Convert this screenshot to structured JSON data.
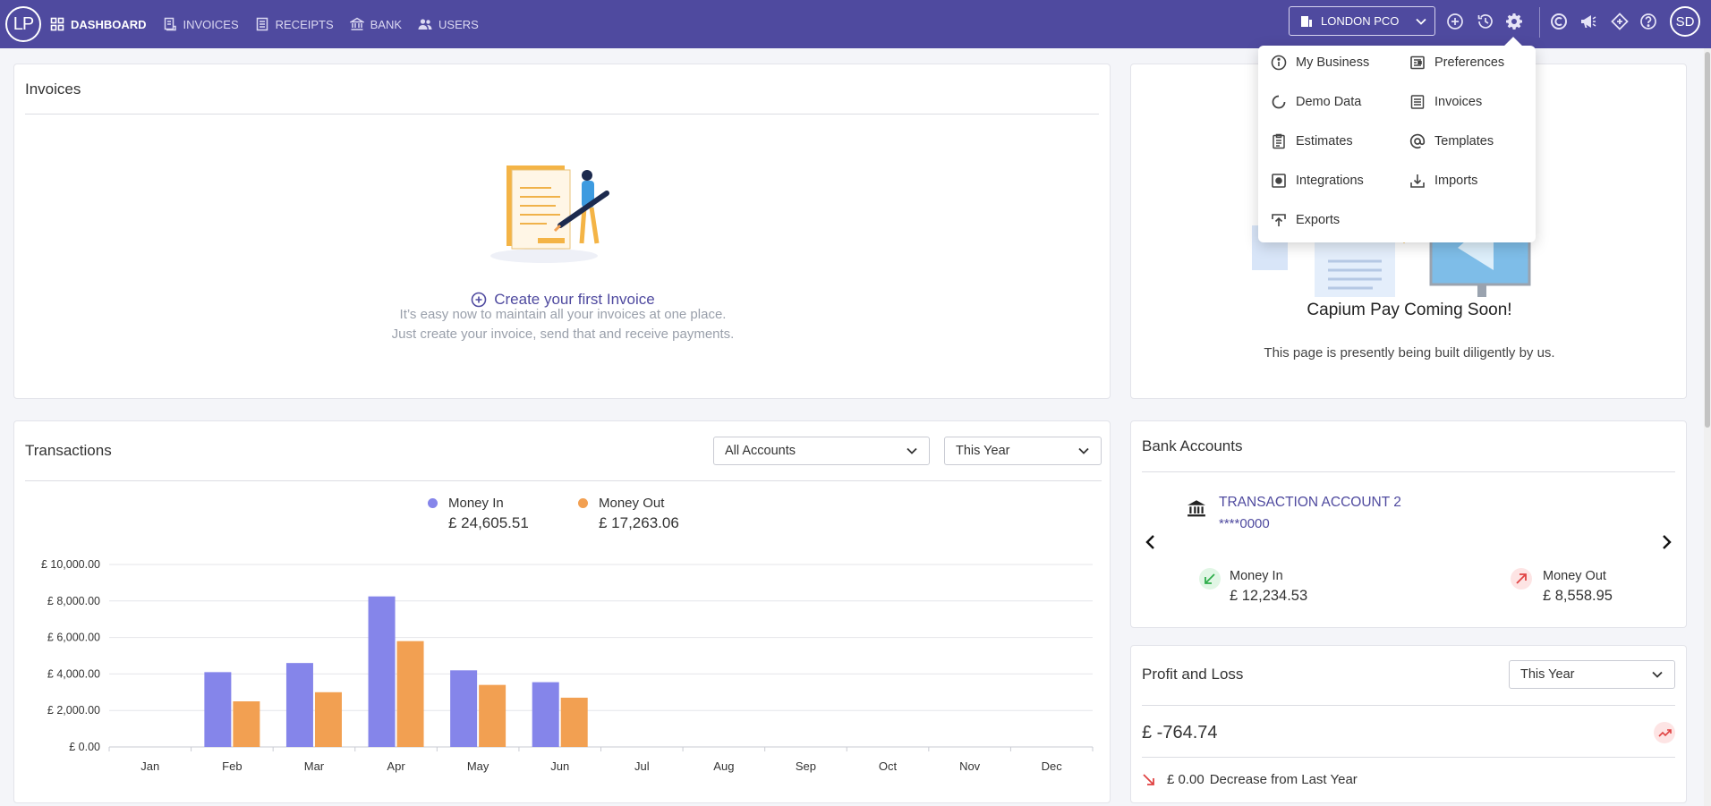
{
  "topbar": {
    "logo": "LP",
    "nav": [
      {
        "label": "DASHBOARD",
        "icon": "dashboard-icon",
        "active": true
      },
      {
        "label": "INVOICES",
        "icon": "invoice-icon",
        "active": false
      },
      {
        "label": "RECEIPTS",
        "icon": "receipt-icon",
        "active": false
      },
      {
        "label": "BANK",
        "icon": "bank-icon",
        "active": false
      },
      {
        "label": "USERS",
        "icon": "users-icon",
        "active": false
      }
    ],
    "company": "LONDON PCO",
    "avatar": "SD",
    "brand_color": "#4f4a9f"
  },
  "invoices": {
    "title": "Invoices",
    "cta": "Create your first Invoice",
    "sub1": "It’s easy now to maintain all your invoices at one place.",
    "sub2": "Just create your invoice, send that and receive payments."
  },
  "capium_pay": {
    "title": "Capium Pay Coming Soon!",
    "subtitle": "This page is presently being built diligently by us."
  },
  "settings_menu": {
    "left": [
      {
        "label": "My Business",
        "icon": "info-icon"
      },
      {
        "label": "Demo Data",
        "icon": "refresh-icon"
      },
      {
        "label": "Estimates",
        "icon": "clipboard-icon"
      },
      {
        "label": "Integrations",
        "icon": "integration-icon"
      },
      {
        "label": "Exports",
        "icon": "export-icon"
      }
    ],
    "right": [
      {
        "label": "Preferences",
        "icon": "preferences-icon"
      },
      {
        "label": "Invoices",
        "icon": "list-icon"
      },
      {
        "label": "Templates",
        "icon": "at-icon"
      },
      {
        "label": "Imports",
        "icon": "import-icon"
      }
    ]
  },
  "transactions": {
    "title": "Transactions",
    "account_filter": "All Accounts",
    "period_filter": "This Year",
    "money_in_label": "Money In",
    "money_in_value": "£ 24,605.51",
    "money_out_label": "Money Out",
    "money_out_value": "£ 17,263.06",
    "money_in_color": "#8585ea",
    "money_out_color": "#f2a052"
  },
  "chart_data": {
    "type": "bar",
    "categories": [
      "Jan",
      "Feb",
      "Mar",
      "Apr",
      "May",
      "Jun",
      "Jul",
      "Aug",
      "Sep",
      "Oct",
      "Nov",
      "Dec"
    ],
    "series": [
      {
        "name": "Money In",
        "values": [
          0,
          4100,
          4600,
          8250,
          4200,
          3550,
          0,
          0,
          0,
          0,
          0,
          0
        ]
      },
      {
        "name": "Money Out",
        "values": [
          0,
          2500,
          3000,
          5800,
          3400,
          2700,
          0,
          0,
          0,
          0,
          0,
          0
        ]
      }
    ],
    "yticks": [
      "£ 0.00",
      "£ 2,000.00",
      "£ 4,000.00",
      "£ 6,000.00",
      "£ 8,000.00",
      "£ 10,000.00"
    ],
    "ylim": [
      0,
      10000
    ],
    "grid": true,
    "legend": "top-center"
  },
  "bank_accounts": {
    "title": "Bank Accounts",
    "account_name": "TRANSACTION ACCOUNT 2",
    "account_number": "****0000",
    "money_in_label": "Money In",
    "money_in_value": "£ 12,234.53",
    "money_out_label": "Money Out",
    "money_out_value": "£ 8,558.95"
  },
  "pnl": {
    "title": "Profit and Loss",
    "period_filter": "This Year",
    "value": "£ -764.74",
    "change_value": "£ 0.00",
    "change_text": "Decrease from Last Year"
  }
}
